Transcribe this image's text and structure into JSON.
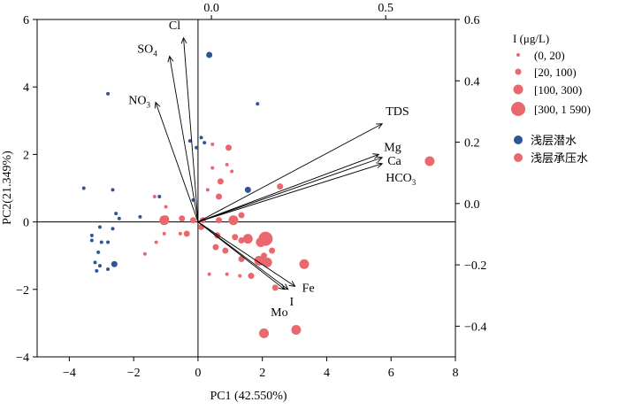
{
  "chart_data": {
    "type": "scatter",
    "subtype": "pca-biplot",
    "xlabel": "PC1 (42.550%)",
    "ylabel": "PC2(21.349%)",
    "xlim": [
      -5,
      8
    ],
    "ylim": [
      -4,
      6
    ],
    "top_xlim": [
      -0.5,
      0.7
    ],
    "right_ylim": [
      -0.5,
      0.6
    ],
    "x_ticks": [
      "−4",
      "−2",
      "0",
      "2",
      "4",
      "6",
      "8"
    ],
    "y_ticks": [
      "6",
      "4",
      "2",
      "0",
      "−2",
      "−4"
    ],
    "top_ticks": [
      "0.0",
      "0.5"
    ],
    "right_ticks": [
      "0.6",
      "0.4",
      "0.2",
      "0.0",
      "−0.2",
      "−0.4"
    ],
    "loadings": [
      {
        "label": "Cl",
        "x": -0.08,
        "y": 0.54
      },
      {
        "label": "SO4",
        "x": -0.12,
        "y": 0.48
      },
      {
        "label": "NO3",
        "x": -0.16,
        "y": 0.33
      },
      {
        "label": "TDS",
        "x": 0.49,
        "y": 0.26
      },
      {
        "label": "Mg",
        "x": 0.48,
        "y": 0.16
      },
      {
        "label": "Ca",
        "x": 0.49,
        "y": 0.15
      },
      {
        "label": "HCO3",
        "x": 0.49,
        "y": 0.13
      },
      {
        "label": "Fe",
        "x": 0.24,
        "y": -0.27
      },
      {
        "label": "I",
        "x": 0.22,
        "y": -0.28
      },
      {
        "label": "Mo",
        "x": 0.21,
        "y": -0.28
      }
    ],
    "legend": {
      "size_title": "I (μg/L)",
      "size_classes": [
        "(0, 20)",
        "[20, 100)",
        "[100, 300)",
        "[300, 1 590)"
      ],
      "groups": [
        {
          "name": "浅层潜水",
          "color": "#2f5597"
        },
        {
          "name": "浅层承压水",
          "color": "#e9686d"
        }
      ]
    },
    "points": [
      {
        "g": 0,
        "s": 1,
        "x": 0.35,
        "y": 4.95
      },
      {
        "g": 0,
        "s": 0,
        "x": -2.8,
        "y": 3.8
      },
      {
        "g": 0,
        "s": 0,
        "x": 1.85,
        "y": 3.5
      },
      {
        "g": 0,
        "s": 0,
        "x": -3.55,
        "y": 1.0
      },
      {
        "g": 0,
        "s": 0,
        "x": -2.65,
        "y": 0.95
      },
      {
        "g": 0,
        "s": 0,
        "x": -1.2,
        "y": 0.75
      },
      {
        "g": 0,
        "s": 0,
        "x": -0.15,
        "y": 0.65
      },
      {
        "g": 0,
        "s": 0,
        "x": -0.25,
        "y": 2.4
      },
      {
        "g": 0,
        "s": 0,
        "x": -0.05,
        "y": 2.2
      },
      {
        "g": 0,
        "s": 0,
        "x": 0.1,
        "y": 2.5
      },
      {
        "g": 0,
        "s": 0,
        "x": 0.2,
        "y": 2.35
      },
      {
        "g": 0,
        "s": 1,
        "x": 1.55,
        "y": 0.95
      },
      {
        "g": 0,
        "s": 0,
        "x": -3.05,
        "y": -0.15
      },
      {
        "g": 0,
        "s": 0,
        "x": -2.65,
        "y": -0.2
      },
      {
        "g": 0,
        "s": 0,
        "x": -3.3,
        "y": -0.4
      },
      {
        "g": 0,
        "s": 0,
        "x": -3.3,
        "y": -0.55
      },
      {
        "g": 0,
        "s": 0,
        "x": -3.0,
        "y": -0.6
      },
      {
        "g": 0,
        "s": 0,
        "x": -2.8,
        "y": -0.6
      },
      {
        "g": 0,
        "s": 0,
        "x": -3.1,
        "y": -0.9
      },
      {
        "g": 0,
        "s": 0,
        "x": -3.2,
        "y": -1.2
      },
      {
        "g": 0,
        "s": 0,
        "x": -3.05,
        "y": -1.3
      },
      {
        "g": 0,
        "s": 0,
        "x": -3.15,
        "y": -1.45
      },
      {
        "g": 0,
        "s": 0,
        "x": -2.8,
        "y": -1.4
      },
      {
        "g": 0,
        "s": 1,
        "x": -2.6,
        "y": -1.25
      },
      {
        "g": 0,
        "s": 0,
        "x": -1.8,
        "y": 0.15
      },
      {
        "g": 0,
        "s": 0,
        "x": -2.45,
        "y": 0.1
      },
      {
        "g": 0,
        "s": 0,
        "x": -2.55,
        "y": 0.25
      },
      {
        "g": 1,
        "s": 2,
        "x": 7.2,
        "y": 1.8
      },
      {
        "g": 1,
        "s": 1,
        "x": 0.95,
        "y": 2.2
      },
      {
        "g": 1,
        "s": 0,
        "x": 0.45,
        "y": 2.3
      },
      {
        "g": 1,
        "s": 0,
        "x": 0.9,
        "y": 1.7
      },
      {
        "g": 1,
        "s": 0,
        "x": 0.45,
        "y": 1.6
      },
      {
        "g": 1,
        "s": 0,
        "x": 1.05,
        "y": 1.5
      },
      {
        "g": 1,
        "s": 1,
        "x": 0.7,
        "y": 1.2
      },
      {
        "g": 1,
        "s": 1,
        "x": 0.65,
        "y": 0.75
      },
      {
        "g": 1,
        "s": 0,
        "x": 0.3,
        "y": 0.95
      },
      {
        "g": 1,
        "s": 1,
        "x": 2.55,
        "y": 1.05
      },
      {
        "g": 1,
        "s": 0,
        "x": -1.35,
        "y": 0.75
      },
      {
        "g": 1,
        "s": 0,
        "x": -1.0,
        "y": 0.45
      },
      {
        "g": 1,
        "s": 1,
        "x": -1.0,
        "y": 0.1
      },
      {
        "g": 1,
        "s": 2,
        "x": -1.05,
        "y": 0.05
      },
      {
        "g": 1,
        "s": 1,
        "x": -0.5,
        "y": 0.1
      },
      {
        "g": 1,
        "s": 1,
        "x": -0.15,
        "y": 0.05
      },
      {
        "g": 1,
        "s": 1,
        "x": 0.15,
        "y": 0.05
      },
      {
        "g": 1,
        "s": 1,
        "x": 0.65,
        "y": 0.05
      },
      {
        "g": 1,
        "s": 2,
        "x": 1.1,
        "y": 0.05
      },
      {
        "g": 1,
        "s": 1,
        "x": 1.35,
        "y": 0.2
      },
      {
        "g": 1,
        "s": 1,
        "x": 0.1,
        "y": -0.15
      },
      {
        "g": 1,
        "s": 0,
        "x": -0.55,
        "y": -0.35
      },
      {
        "g": 1,
        "s": 0,
        "x": -1.05,
        "y": -0.35
      },
      {
        "g": 1,
        "s": 1,
        "x": -0.35,
        "y": -0.35
      },
      {
        "g": 1,
        "s": 1,
        "x": 0.6,
        "y": -0.4
      },
      {
        "g": 1,
        "s": 1,
        "x": 1.15,
        "y": -0.45
      },
      {
        "g": 1,
        "s": 1,
        "x": 1.35,
        "y": -0.55
      },
      {
        "g": 1,
        "s": 2,
        "x": 1.55,
        "y": -0.5
      },
      {
        "g": 1,
        "s": 2,
        "x": 1.95,
        "y": -0.6
      },
      {
        "g": 1,
        "s": 3,
        "x": 2.1,
        "y": -0.5
      },
      {
        "g": 1,
        "s": 1,
        "x": 2.3,
        "y": -0.85
      },
      {
        "g": 1,
        "s": 1,
        "x": 0.55,
        "y": -0.75
      },
      {
        "g": 1,
        "s": 1,
        "x": 0.85,
        "y": -0.85
      },
      {
        "g": 1,
        "s": 1,
        "x": 2.05,
        "y": -1.0
      },
      {
        "g": 1,
        "s": 1,
        "x": 1.35,
        "y": -1.1
      },
      {
        "g": 1,
        "s": 2,
        "x": 1.9,
        "y": -1.15
      },
      {
        "g": 1,
        "s": 2,
        "x": 2.15,
        "y": -1.2
      },
      {
        "g": 1,
        "s": 2,
        "x": 3.3,
        "y": -1.25
      },
      {
        "g": 1,
        "s": 0,
        "x": -1.65,
        "y": -0.95
      },
      {
        "g": 1,
        "s": 0,
        "x": -1.3,
        "y": -0.6
      },
      {
        "g": 1,
        "s": 0,
        "x": 0.35,
        "y": -1.55
      },
      {
        "g": 1,
        "s": 0,
        "x": 0.9,
        "y": -1.55
      },
      {
        "g": 1,
        "s": 0,
        "x": 1.3,
        "y": -1.6
      },
      {
        "g": 1,
        "s": 1,
        "x": 1.65,
        "y": -1.6
      },
      {
        "g": 1,
        "s": 1,
        "x": 2.4,
        "y": -1.95
      },
      {
        "g": 1,
        "s": 2,
        "x": 2.05,
        "y": -3.3
      },
      {
        "g": 1,
        "s": 2,
        "x": 3.05,
        "y": -3.2
      }
    ]
  }
}
